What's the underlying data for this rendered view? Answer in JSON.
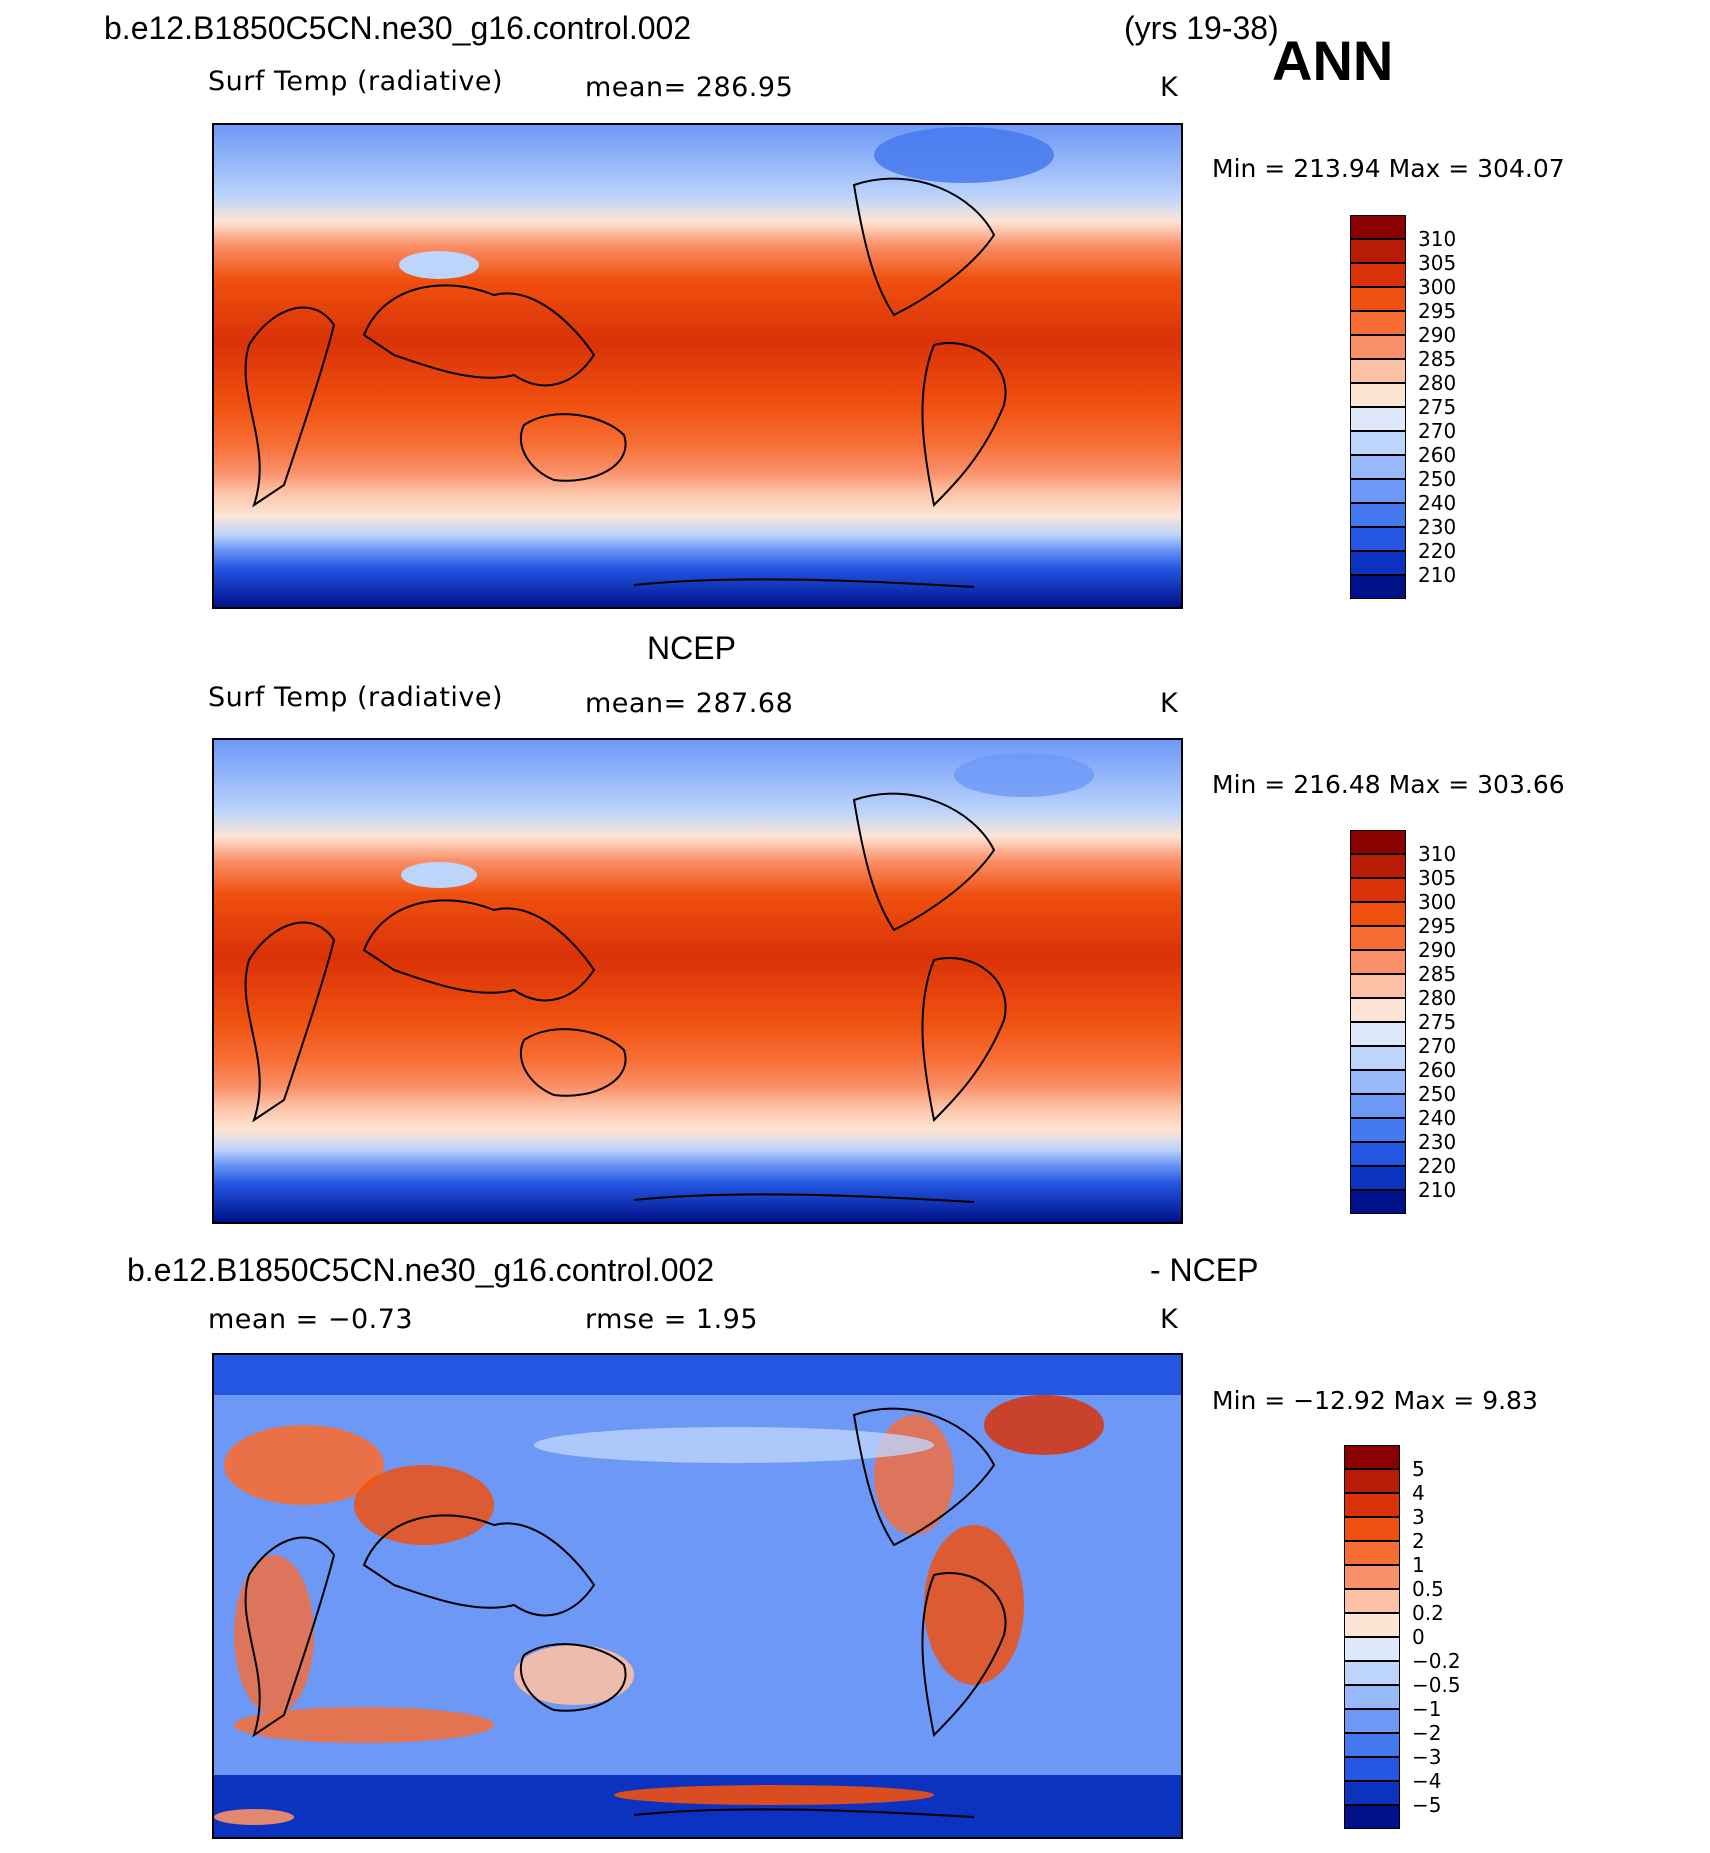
{
  "header": {
    "case_name": "b.e12.B1850C5CN.ne30_g16.control.002",
    "years": "(yrs 19-38)",
    "season": "ANN"
  },
  "panels": [
    {
      "id": "model",
      "title_left": "",
      "title_right": "",
      "variable": "Surf Temp (radiative)",
      "stat": "mean= 286.95",
      "units": "K",
      "min_max": "Min = 213.94 Max = 304.07",
      "field": "surface-temperature"
    },
    {
      "id": "obs",
      "title_left": "NCEP",
      "title_right": "",
      "variable": "Surf Temp (radiative)",
      "stat": "mean= 287.68",
      "units": "K",
      "min_max": "Min = 216.48 Max = 303.66",
      "field": "surface-temperature"
    },
    {
      "id": "diff",
      "title_left": "b.e12.B1850C5CN.ne30_g16.control.002",
      "title_right": "- NCEP",
      "variable": "mean = −0.73",
      "stat": "rmse = 1.95",
      "units": "K",
      "min_max": "Min = −12.92 Max = 9.83",
      "field": "difference"
    }
  ],
  "colorbars": {
    "temperature": {
      "labels": [
        "310",
        "305",
        "300",
        "295",
        "290",
        "285",
        "280",
        "275",
        "270",
        "260",
        "250",
        "240",
        "230",
        "220",
        "210"
      ],
      "colors": [
        "#8b0000",
        "#b81c06",
        "#d93208",
        "#f0500f",
        "#f76d34",
        "#fa9069",
        "#fcc0a4",
        "#fde5d5",
        "#dde9fb",
        "#bdd4fb",
        "#97b8f9",
        "#6d98f6",
        "#4579ef",
        "#2456e2",
        "#0c33c0",
        "#00118a"
      ]
    },
    "difference": {
      "labels": [
        "5",
        "4",
        "3",
        "2",
        "1",
        "0.5",
        "0.2",
        "0",
        "−0.2",
        "−0.5",
        "−1",
        "−2",
        "−3",
        "−4",
        "−5"
      ],
      "colors": [
        "#8b0000",
        "#b81c06",
        "#d93208",
        "#f0500f",
        "#f76d34",
        "#fa9069",
        "#fcc0a4",
        "#fde5d5",
        "#dde9fb",
        "#bdd4fb",
        "#97b8f9",
        "#6d98f6",
        "#4579ef",
        "#2456e2",
        "#0c33c0",
        "#00118a"
      ]
    }
  }
}
